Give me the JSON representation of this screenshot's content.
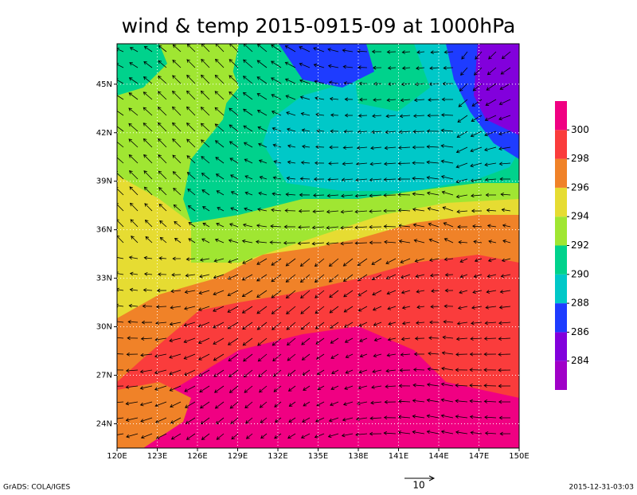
{
  "title": "wind & temp 2015-0915-09 at 1000hPa",
  "map": {
    "xlim": [
      120,
      150
    ],
    "ylim": [
      22.5,
      47.5
    ],
    "xticks": [
      {
        "value": 120,
        "label": "120E"
      },
      {
        "value": 123,
        "label": "123E"
      },
      {
        "value": 126,
        "label": "126E"
      },
      {
        "value": 129,
        "label": "129E"
      },
      {
        "value": 132,
        "label": "132E"
      },
      {
        "value": 135,
        "label": "135E"
      },
      {
        "value": 138,
        "label": "138E"
      },
      {
        "value": 141,
        "label": "141E"
      },
      {
        "value": 144,
        "label": "144E"
      },
      {
        "value": 147,
        "label": "147E"
      },
      {
        "value": 150,
        "label": "150E"
      }
    ],
    "yticks": [
      {
        "value": 24,
        "label": "24N"
      },
      {
        "value": 27,
        "label": "27N"
      },
      {
        "value": 30,
        "label": "30N"
      },
      {
        "value": 33,
        "label": "33N"
      },
      {
        "value": 36,
        "label": "36N"
      },
      {
        "value": 39,
        "label": "39N"
      },
      {
        "value": 42,
        "label": "42N"
      },
      {
        "value": 45,
        "label": "45N"
      }
    ],
    "grid": true
  },
  "colorbar": {
    "levels": [
      284,
      286,
      288,
      290,
      292,
      294,
      296,
      298,
      300
    ],
    "colors": [
      "#a000c8",
      "#8200dc",
      "#1e3cff",
      "#00c8c8",
      "#00d28c",
      "#a0e632",
      "#e6dc32",
      "#f08228",
      "#fa3c3c",
      "#f00082"
    ]
  },
  "reference_vector": "10",
  "footer_left": "GrADS: COLA/IGES",
  "footer_right": "2015-12-31-03:03"
}
